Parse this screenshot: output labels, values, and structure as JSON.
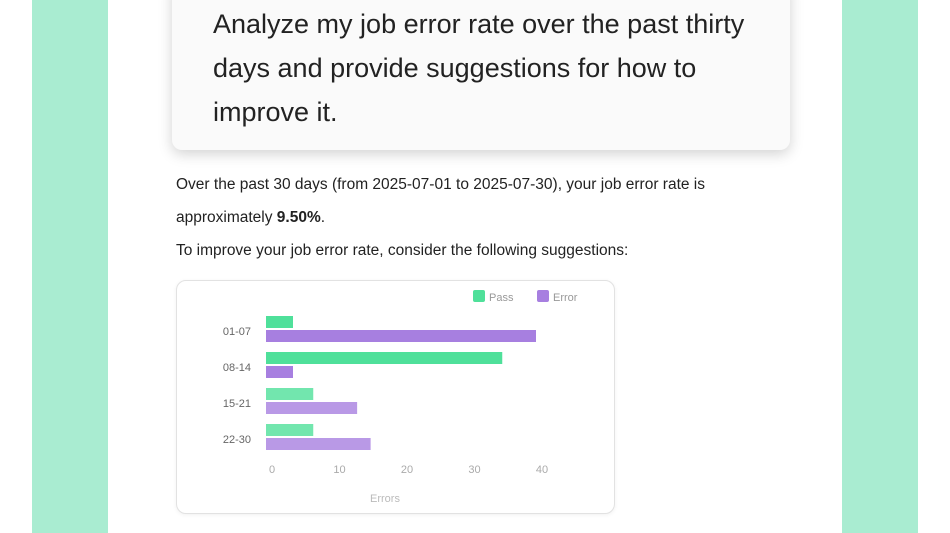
{
  "prompt": {
    "text": "Analyze my job error rate over the past thirty days and provide suggestions for how to improve it."
  },
  "response": {
    "line1_prefix": "Over the past 30 days (from 2025-07-01 to 2025-07-30), your job error rate is approximately ",
    "error_rate": "9.50%",
    "line1_suffix": ".",
    "line2": "To improve your job error rate, consider the following suggestions:"
  },
  "chart_data": {
    "type": "bar",
    "orientation": "horizontal",
    "categories": [
      "01-07",
      "08-14",
      "15-21",
      "22-30"
    ],
    "series": [
      {
        "name": "Pass",
        "values": [
          4,
          35,
          7,
          7
        ],
        "color": "#4fe09a"
      },
      {
        "name": "Error",
        "values": [
          40,
          4,
          13.5,
          15.5
        ],
        "color": "#a77fe0"
      }
    ],
    "xlabel": "Errors",
    "xticks": [
      0,
      10,
      20,
      30,
      40
    ],
    "xlim": [
      0,
      45
    ],
    "grid": false,
    "legend": "top-right"
  },
  "colors": {
    "background": "#a9ecd1",
    "pass": "#4fe09a",
    "error": "#a77fe0"
  }
}
